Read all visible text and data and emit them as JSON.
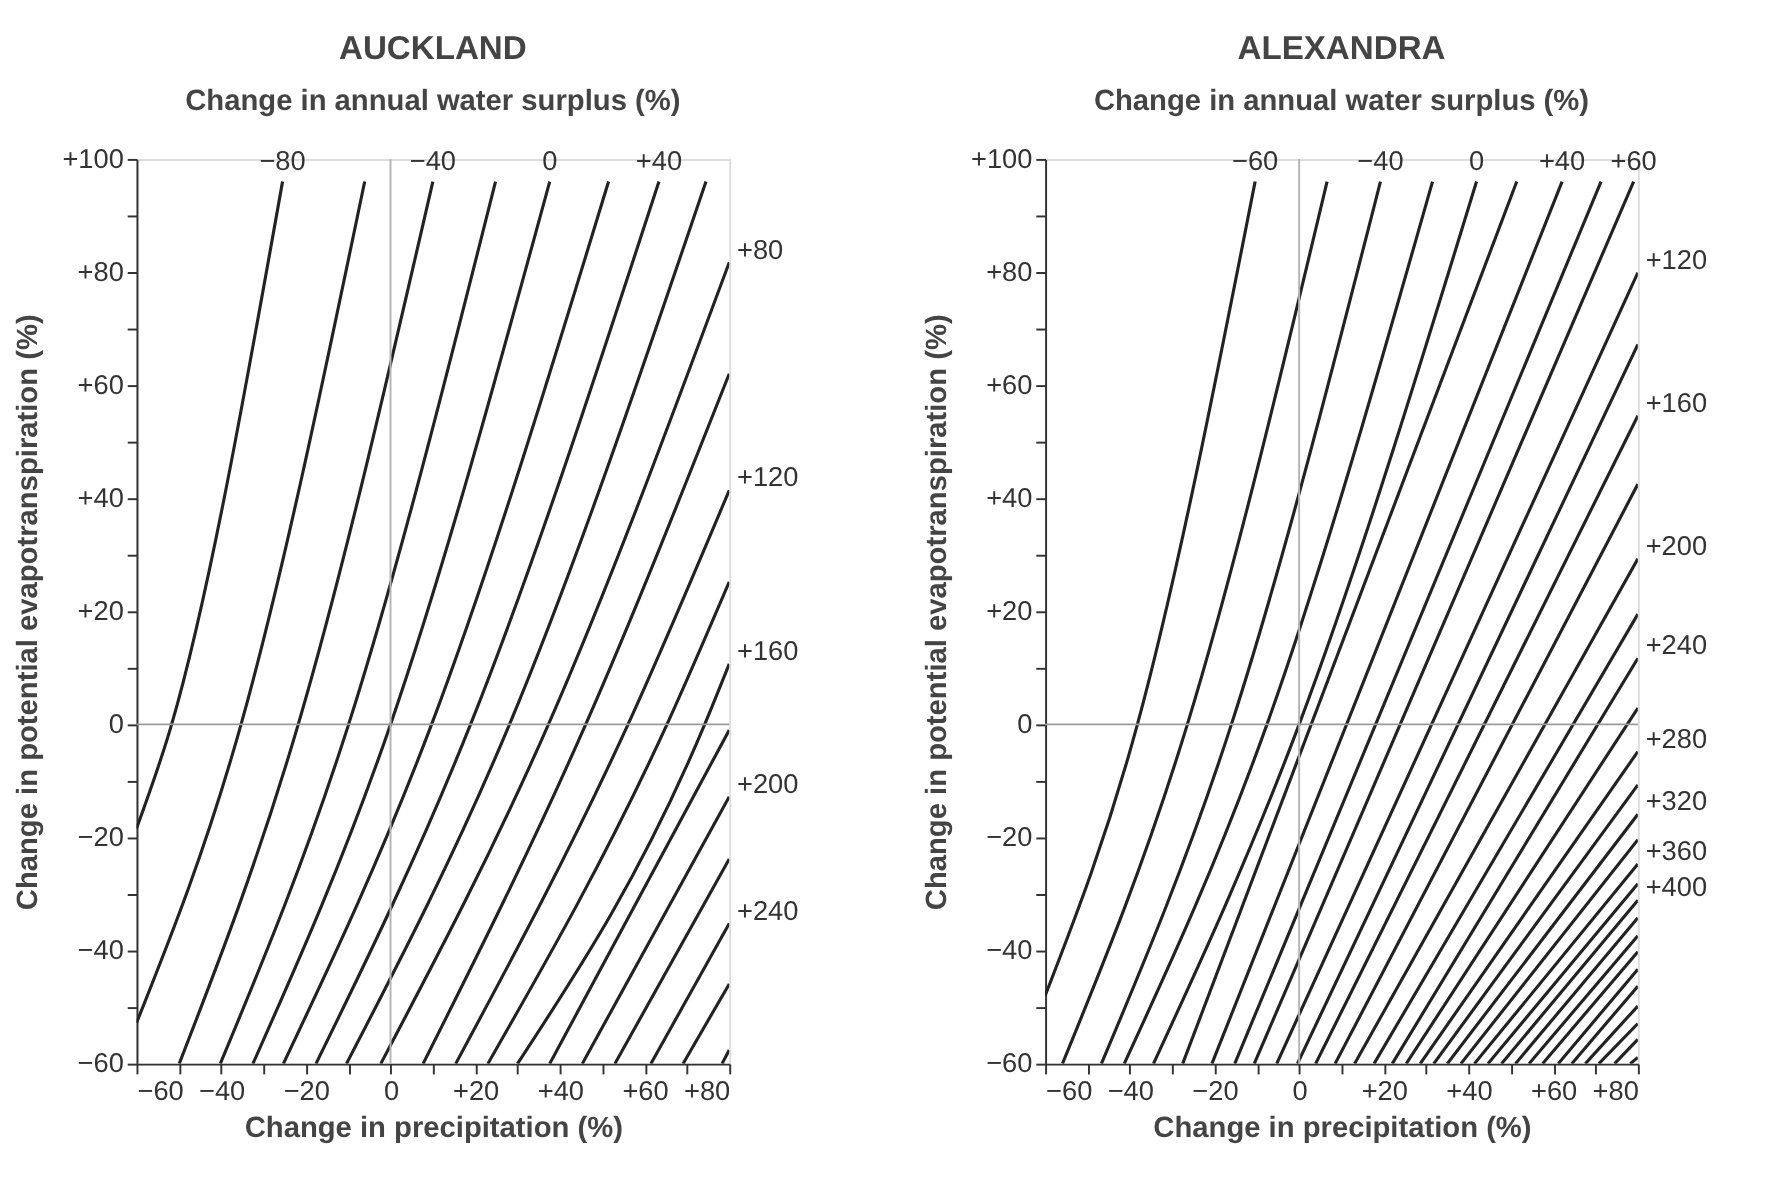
{
  "chart_data": [
    {
      "type": "line",
      "title": "AUCKLAND",
      "subtitle": "Change in annual water surplus (%)",
      "xlabel": "Change in precipitation (%)",
      "ylabel": "Change in potential evapotranspiration (%)",
      "xlim": [
        -60,
        80
      ],
      "ylim": [
        -60,
        100
      ],
      "xticks": [
        {
          "value": -60,
          "label": "−60"
        },
        {
          "value": -50,
          "label": null
        },
        {
          "value": -40,
          "label": "−40"
        },
        {
          "value": -30,
          "label": null
        },
        {
          "value": -20,
          "label": "−20"
        },
        {
          "value": -10,
          "label": null
        },
        0,
        {
          "value": 10,
          "label": null
        },
        {
          "value": 20,
          "label": "+20"
        },
        {
          "value": 30,
          "label": null
        },
        {
          "value": 40,
          "label": "+40"
        },
        {
          "value": 50,
          "label": null
        },
        {
          "value": 60,
          "label": "+60"
        },
        {
          "value": 70,
          "label": null
        },
        {
          "value": 80,
          "label": "+80"
        }
      ],
      "yticks": [
        {
          "value": -60,
          "label": "−60"
        },
        {
          "value": -50,
          "label": null
        },
        {
          "value": -40,
          "label": "−40"
        },
        {
          "value": -30,
          "label": null
        },
        {
          "value": -20,
          "label": "−20"
        },
        {
          "value": -10,
          "label": null
        },
        0,
        {
          "value": 10,
          "label": null
        },
        {
          "value": 20,
          "label": "+20"
        },
        {
          "value": 30,
          "label": null
        },
        {
          "value": 40,
          "label": "+40"
        },
        {
          "value": 50,
          "label": null
        },
        {
          "value": 60,
          "label": "+60"
        },
        {
          "value": 70,
          "label": null
        },
        {
          "value": 80,
          "label": "+80"
        },
        {
          "value": 90,
          "label": null
        },
        {
          "value": 100,
          "label": "+100"
        }
      ],
      "line_style": "solid",
      "ref_lines": [
        {
          "axis": "x",
          "value": 0,
          "color": "#b4b4b4"
        },
        {
          "axis": "y",
          "value": 0,
          "color": "#9a9a9a"
        }
      ],
      "series": [
        {
          "color": "#222222",
          "x": [
            -60,
            -51.7,
            -25.5
          ],
          "values": [
            -18.4,
            0,
            96
          ]
        },
        {
          "color": "#222222",
          "x": [
            -60,
            -35.3,
            -6.1
          ],
          "values": [
            -52.8,
            0,
            96
          ]
        },
        {
          "color": "#222222",
          "x": [
            -49.9,
            -21.8,
            10.0
          ],
          "values": [
            -60,
            0,
            96
          ]
        },
        {
          "color": "#222222",
          "x": [
            -40.2,
            -9.9,
            24.8
          ],
          "values": [
            -60,
            0,
            96
          ]
        },
        {
          "color": "#222222",
          "x": [
            -32.5,
            0,
            37.6
          ],
          "values": [
            -60,
            0,
            96
          ]
        },
        {
          "color": "#222222",
          "x": [
            -25.3,
            9.7,
            51.5
          ],
          "values": [
            -60,
            0,
            96
          ]
        },
        {
          "color": "#222222",
          "x": [
            -17.6,
            18.9,
            63.4
          ],
          "values": [
            -60,
            0,
            96
          ]
        },
        {
          "color": "#222222",
          "x": [
            -10.4,
            28.1,
            74.5
          ],
          "values": [
            -60,
            0,
            96
          ]
        },
        {
          "color": "#222222",
          "x": [
            -2.3,
            37.3,
            80
          ],
          "values": [
            -60,
            0,
            81.7
          ]
        },
        {
          "color": "#222222",
          "x": [
            7.7,
            46.1,
            80
          ],
          "values": [
            -60,
            0,
            62
          ]
        },
        {
          "color": "#222222",
          "x": [
            15.4,
            56.1,
            80
          ],
          "values": [
            -60,
            0,
            41.4
          ]
        },
        {
          "color": "#222222",
          "x": [
            23.0,
            65.3,
            80
          ],
          "values": [
            -60,
            0,
            25.2
          ]
        },
        {
          "color": "#222222",
          "x": [
            30.0,
            74.2,
            80
          ],
          "values": [
            -60,
            0,
            10.7
          ]
        },
        {
          "color": "#222222",
          "x": [
            37.6,
            80
          ],
          "values": [
            -60,
            -1
          ]
        },
        {
          "color": "#222222",
          "x": [
            45.3,
            80
          ],
          "values": [
            -60,
            -12.8
          ]
        },
        {
          "color": "#222222",
          "x": [
            53.0,
            80
          ],
          "values": [
            -60,
            -23.8
          ]
        },
        {
          "color": "#222222",
          "x": [
            61.5,
            80
          ],
          "values": [
            -60,
            -35.2
          ]
        },
        {
          "color": "#222222",
          "x": [
            69.1,
            80
          ],
          "values": [
            -60,
            -45.9
          ]
        },
        {
          "color": "#222222",
          "x": [
            78.3,
            80
          ],
          "values": [
            -60,
            -57.6
          ]
        }
      ],
      "annotations": [
        {
          "text": "−80",
          "x": -25.5,
          "y": 96
        },
        {
          "text": "−40",
          "x": 10.0,
          "y": 96
        },
        {
          "text": "0",
          "x": 37.6,
          "y": 96
        },
        {
          "text": "+40",
          "x": 63.4,
          "y": 96
        },
        {
          "text": "+80",
          "x": 80,
          "y": 81.7
        },
        {
          "text": "+120",
          "x": 80,
          "y": 41.4
        },
        {
          "text": "+160",
          "x": 80,
          "y": 10.7
        },
        {
          "text": "+200",
          "x": 80,
          "y": -12.8
        },
        {
          "text": "+240",
          "x": 80,
          "y": -35.2
        }
      ]
    },
    {
      "type": "line",
      "title": "ALEXANDRA",
      "subtitle": "Change in annual water surplus (%)",
      "xlabel": "Change in precipitation (%)",
      "ylabel": "Change in potential evapotranspiration (%)",
      "xlim": [
        -60,
        80
      ],
      "ylim": [
        -60,
        100
      ],
      "xticks": [
        {
          "value": -60,
          "label": "−60"
        },
        {
          "value": -50,
          "label": null
        },
        {
          "value": -40,
          "label": "−40"
        },
        {
          "value": -30,
          "label": null
        },
        {
          "value": -20,
          "label": "−20"
        },
        {
          "value": -10,
          "label": null
        },
        0,
        {
          "value": 10,
          "label": null
        },
        {
          "value": 20,
          "label": "+20"
        },
        {
          "value": 30,
          "label": null
        },
        {
          "value": 40,
          "label": "+40"
        },
        {
          "value": 50,
          "label": null
        },
        {
          "value": 60,
          "label": "+60"
        },
        {
          "value": 70,
          "label": null
        },
        {
          "value": 80,
          "label": "+80"
        }
      ],
      "yticks": [
        {
          "value": -60,
          "label": "−60"
        },
        {
          "value": -50,
          "label": null
        },
        {
          "value": -40,
          "label": "−40"
        },
        {
          "value": -30,
          "label": null
        },
        {
          "value": -20,
          "label": "−20"
        },
        {
          "value": -10,
          "label": null
        },
        0,
        {
          "value": 10,
          "label": null
        },
        {
          "value": 20,
          "label": "+20"
        },
        {
          "value": 30,
          "label": null
        },
        {
          "value": 40,
          "label": "+40"
        },
        {
          "value": 50,
          "label": null
        },
        {
          "value": 60,
          "label": "+60"
        },
        {
          "value": 70,
          "label": null
        },
        {
          "value": 80,
          "label": "+80"
        },
        {
          "value": 90,
          "label": null
        },
        {
          "value": 100,
          "label": "+100"
        }
      ],
      "line_style": "solid",
      "ref_lines": [
        {
          "axis": "x",
          "value": 0,
          "color": "#b4b4b4"
        },
        {
          "axis": "y",
          "value": 0,
          "color": "#9a9a9a"
        }
      ],
      "series": [
        {
          "color": "#222222",
          "x": [
            -60,
            -38.2,
            -10.4
          ],
          "values": [
            -48,
            0,
            96
          ]
        },
        {
          "color": "#222222",
          "x": [
            -55.9,
            -26.4,
            6.6
          ],
          "values": [
            -60,
            0,
            96
          ]
        },
        {
          "color": "#222222",
          "x": [
            -46.7,
            -16,
            19.2
          ],
          "values": [
            -60,
            0,
            96
          ]
        },
        {
          "color": "#222222",
          "x": [
            -41.3,
            -7.6,
            31.5
          ],
          "values": [
            -60,
            0,
            96
          ]
        },
        {
          "color": "#222222",
          "x": [
            -34.4,
            0,
            41.9
          ],
          "values": [
            -60,
            0,
            96
          ]
        },
        {
          "color": "#222222",
          "x": [
            -27.5,
            51.4
          ],
          "values": [
            -60,
            96
          ]
        },
        {
          "color": "#222222",
          "x": [
            -20.6,
            62.1
          ],
          "values": [
            -60,
            96
          ]
        },
        {
          "color": "#222222",
          "x": [
            -15.2,
            71.3
          ],
          "values": [
            -60,
            96
          ]
        },
        {
          "color": "#222222",
          "x": [
            -10.6,
            79.0
          ],
          "values": [
            -60,
            96
          ]
        },
        {
          "color": "#222222",
          "x": [
            -5.3,
            80
          ],
          "values": [
            -60,
            79.9
          ]
        },
        {
          "color": "#222222",
          "x": [
            -0.4,
            80
          ],
          "values": [
            -60,
            67.2
          ]
        },
        {
          "color": "#222222",
          "x": [
            3.9,
            80
          ],
          "values": [
            -60,
            54.6
          ]
        },
        {
          "color": "#222222",
          "x": [
            8.5,
            80
          ],
          "values": [
            -60,
            42.5
          ]
        },
        {
          "color": "#222222",
          "x": [
            13.1,
            80
          ],
          "values": [
            -60,
            29.3
          ]
        },
        {
          "color": "#222222",
          "x": [
            17.7,
            80
          ],
          "values": [
            -60,
            19.5
          ]
        },
        {
          "color": "#222222",
          "x": [
            22.0,
            80
          ],
          "values": [
            -60,
            11.7
          ]
        },
        {
          "color": "#222222",
          "x": [
            25.3,
            80
          ],
          "values": [
            -60,
            2.9
          ]
        },
        {
          "color": "#222222",
          "x": [
            28.6,
            80
          ],
          "values": [
            -60,
            -4.8
          ]
        },
        {
          "color": "#222222",
          "x": [
            31.8,
            80
          ],
          "values": [
            -60,
            -10.7
          ]
        },
        {
          "color": "#222222",
          "x": [
            35.0,
            80
          ],
          "values": [
            -60,
            -15.9
          ]
        },
        {
          "color": "#222222",
          "x": [
            38.2,
            80
          ],
          "values": [
            -60,
            -20.4
          ]
        },
        {
          "color": "#222222",
          "x": [
            41.4,
            80
          ],
          "values": [
            -60,
            -24.7
          ]
        },
        {
          "color": "#222222",
          "x": [
            44.6,
            80
          ],
          "values": [
            -60,
            -28.2
          ]
        },
        {
          "color": "#222222",
          "x": [
            47.8,
            80
          ],
          "values": [
            -60,
            -31.1
          ]
        },
        {
          "color": "#222222",
          "x": [
            51.1,
            80
          ],
          "values": [
            -60,
            -34.2
          ]
        },
        {
          "color": "#222222",
          "x": [
            54.3,
            80
          ],
          "values": [
            -60,
            -37.4
          ]
        },
        {
          "color": "#222222",
          "x": [
            57.5,
            80
          ],
          "values": [
            -60,
            -40.2
          ]
        },
        {
          "color": "#222222",
          "x": [
            61.2,
            80
          ],
          "values": [
            -60,
            -43.3
          ]
        },
        {
          "color": "#222222",
          "x": [
            64.4,
            80
          ],
          "values": [
            -60,
            -46.3
          ]
        },
        {
          "color": "#222222",
          "x": [
            67.6,
            80
          ],
          "values": [
            -60,
            -49.8
          ]
        },
        {
          "color": "#222222",
          "x": [
            70.8,
            80
          ],
          "values": [
            -60,
            -52.9
          ]
        },
        {
          "color": "#222222",
          "x": [
            74.5,
            80
          ],
          "values": [
            -60,
            -55.7
          ]
        },
        {
          "color": "#222222",
          "x": [
            78.2,
            80
          ],
          "values": [
            -60,
            -58.9
          ]
        }
      ],
      "annotations": [
        {
          "text": "−60",
          "x": -10.4,
          "y": 96
        },
        {
          "text": "−40",
          "x": 19.2,
          "y": 96
        },
        {
          "text": "0",
          "x": 41.9,
          "y": 96
        },
        {
          "text": "+40",
          "x": 62.1,
          "y": 96
        },
        {
          "text": "+60",
          "x": 79.0,
          "y": 96
        },
        {
          "text": "+120",
          "x": 80,
          "y": 79.9
        },
        {
          "text": "+160",
          "x": 80,
          "y": 54.6
        },
        {
          "text": "+200",
          "x": 80,
          "y": 29.3
        },
        {
          "text": "+240",
          "x": 80,
          "y": 11.7
        },
        {
          "text": "+280",
          "x": 80,
          "y": -4.8
        },
        {
          "text": "+320",
          "x": 80,
          "y": -15.9
        },
        {
          "text": "+360",
          "x": 80,
          "y": -24.7
        },
        {
          "text": "+400",
          "x": 80,
          "y": -31.1
        }
      ]
    }
  ]
}
